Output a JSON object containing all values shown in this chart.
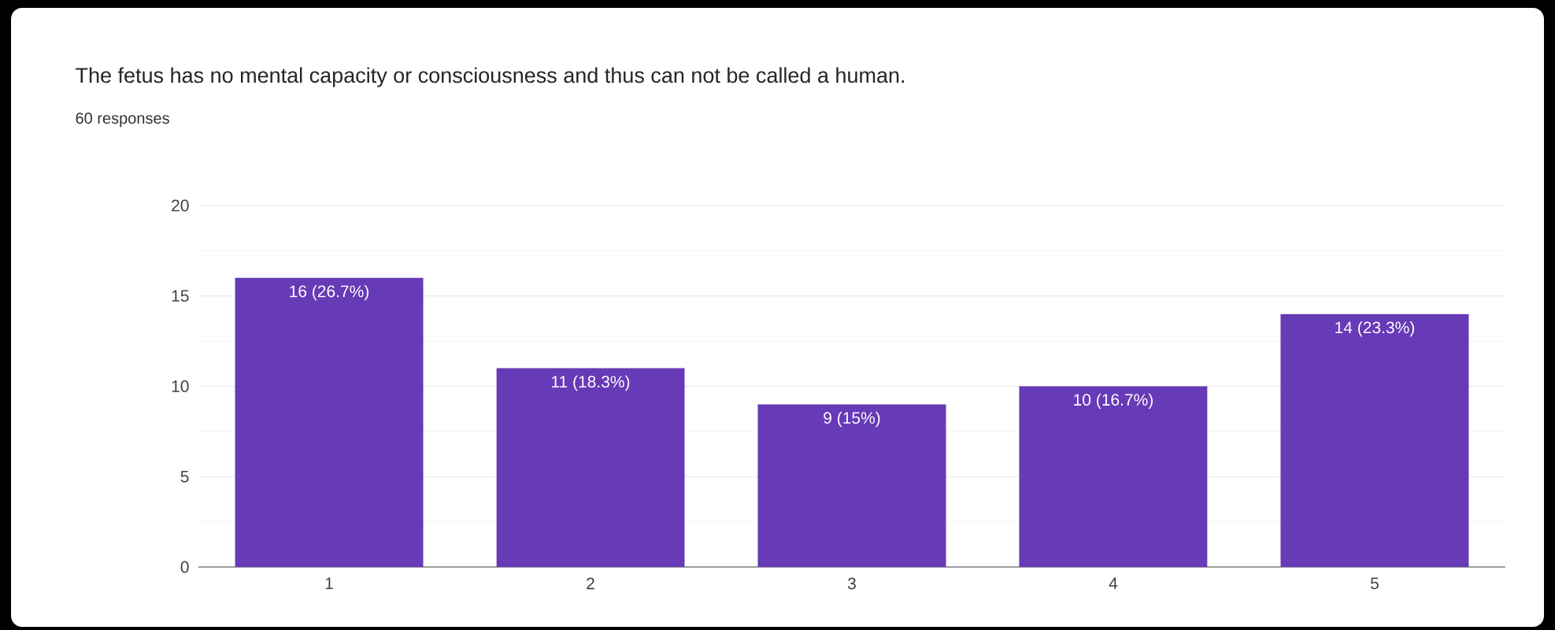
{
  "chart_data": {
    "type": "bar",
    "title": "The fetus has no mental capacity or consciousness and thus can not be called a human.",
    "subtitle": "60 responses",
    "categories": [
      "1",
      "2",
      "3",
      "4",
      "5"
    ],
    "values": [
      16,
      11,
      9,
      10,
      14
    ],
    "value_labels": [
      "16 (26.7%)",
      "11 (18.3%)",
      "9 (15%)",
      "10 (16.7%)",
      "14 (23.3%)"
    ],
    "color": "#673ab7",
    "ylim": [
      0,
      20
    ],
    "yticks": [
      0,
      5,
      10,
      15,
      20
    ],
    "grid": "y"
  }
}
